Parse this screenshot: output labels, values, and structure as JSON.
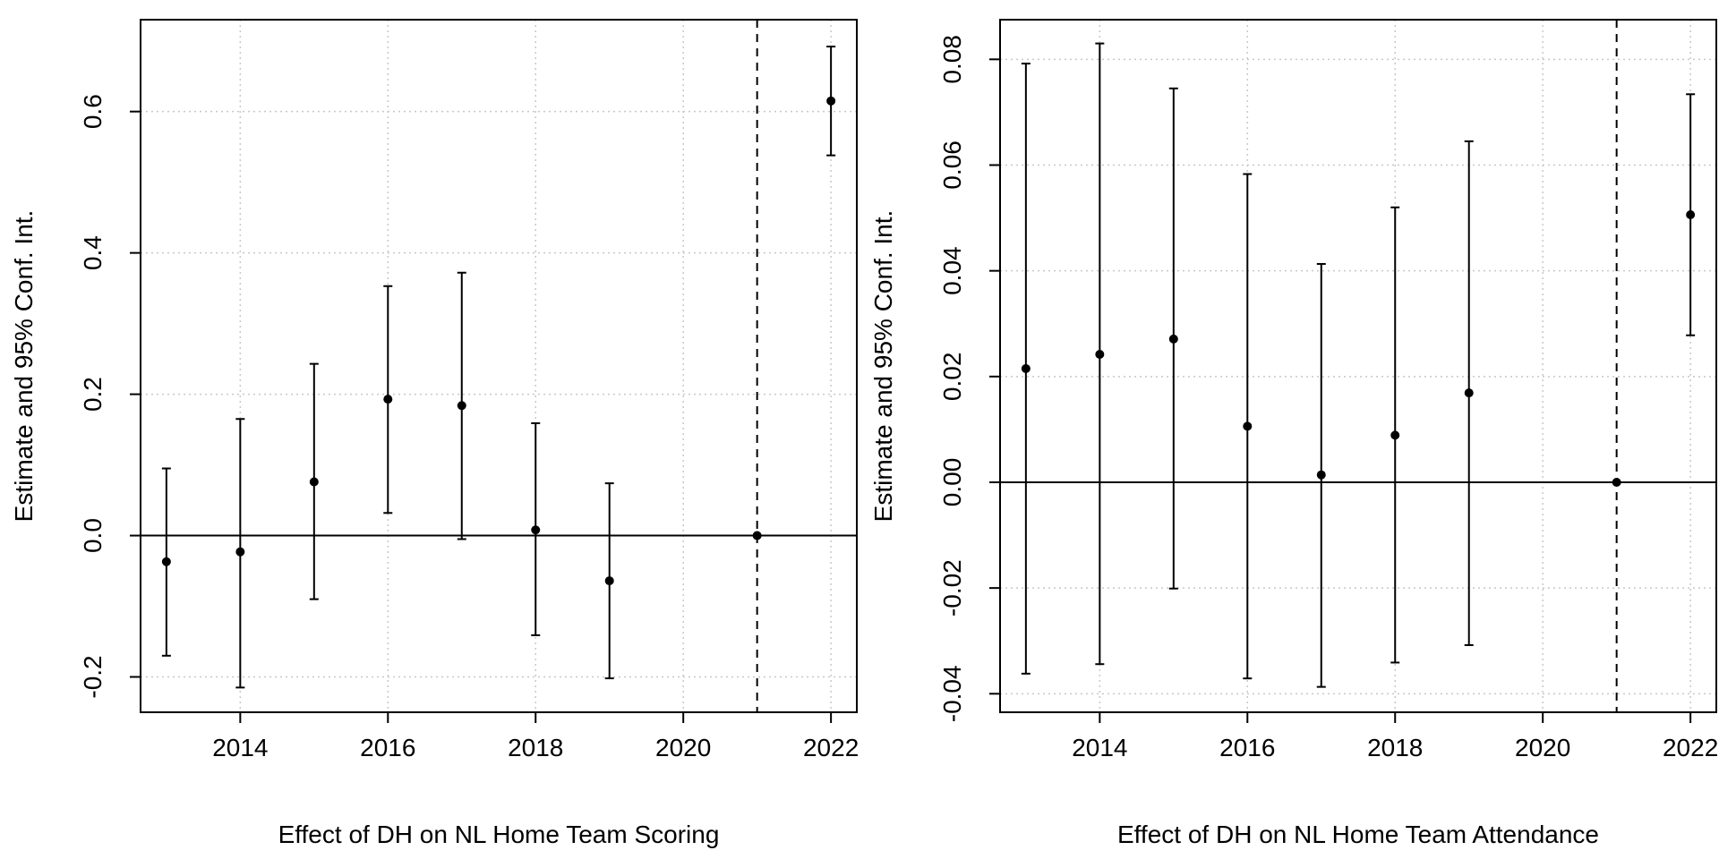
{
  "chart_data": [
    {
      "type": "scatter",
      "title": "",
      "xlabel": "Effect of DH on NL Home Team Scoring",
      "ylabel": "Estimate and 95% Conf. Int.",
      "xlim": [
        2012.65,
        2022.35
      ],
      "ylim": [
        -0.25,
        0.73
      ],
      "x_ticks": [
        2014,
        2016,
        2018,
        2020,
        2022
      ],
      "x_tick_labels": [
        "2014",
        "2016",
        "2018",
        "2020",
        "2022"
      ],
      "y_ticks": [
        -0.2,
        0.0,
        0.2,
        0.4,
        0.6
      ],
      "y_tick_labels": [
        "-0.2",
        "0.0",
        "0.2",
        "0.4",
        "0.6"
      ],
      "grid": true,
      "reference_hline": 0,
      "reference_vline": 2021,
      "points": [
        {
          "x": 2013,
          "y": -0.037,
          "lo": -0.17,
          "hi": 0.095
        },
        {
          "x": 2014,
          "y": -0.023,
          "lo": -0.215,
          "hi": 0.165
        },
        {
          "x": 2015,
          "y": 0.076,
          "lo": -0.09,
          "hi": 0.243
        },
        {
          "x": 2016,
          "y": 0.193,
          "lo": 0.032,
          "hi": 0.353
        },
        {
          "x": 2017,
          "y": 0.184,
          "lo": -0.005,
          "hi": 0.372
        },
        {
          "x": 2018,
          "y": 0.008,
          "lo": -0.141,
          "hi": 0.159
        },
        {
          "x": 2019,
          "y": -0.064,
          "lo": -0.202,
          "hi": 0.074
        },
        {
          "x": 2021,
          "y": 0.0,
          "lo": 0.0,
          "hi": 0.0
        },
        {
          "x": 2022,
          "y": 0.615,
          "lo": 0.538,
          "hi": 0.692
        }
      ]
    },
    {
      "type": "scatter",
      "title": "",
      "xlabel": "Effect of DH on NL Home Team Attendance",
      "ylabel": "Estimate and 95% Conf. Int.",
      "xlim": [
        2012.65,
        2022.35
      ],
      "ylim": [
        -0.0435,
        0.0875
      ],
      "x_ticks": [
        2014,
        2016,
        2018,
        2020,
        2022
      ],
      "x_tick_labels": [
        "2014",
        "2016",
        "2018",
        "2020",
        "2022"
      ],
      "y_ticks": [
        -0.04,
        -0.02,
        0.0,
        0.02,
        0.04,
        0.06,
        0.08
      ],
      "y_tick_labels": [
        "-0.04",
        "-0.02",
        "0.00",
        "0.02",
        "0.04",
        "0.06",
        "0.08"
      ],
      "grid": true,
      "reference_hline": 0,
      "reference_vline": 2021,
      "points": [
        {
          "x": 2013,
          "y": 0.0215,
          "lo": -0.0362,
          "hi": 0.0792
        },
        {
          "x": 2014,
          "y": 0.0242,
          "lo": -0.0344,
          "hi": 0.083
        },
        {
          "x": 2015,
          "y": 0.0271,
          "lo": -0.0201,
          "hi": 0.0745
        },
        {
          "x": 2016,
          "y": 0.0106,
          "lo": -0.0371,
          "hi": 0.0583
        },
        {
          "x": 2017,
          "y": 0.0014,
          "lo": -0.0387,
          "hi": 0.0413
        },
        {
          "x": 2018,
          "y": 0.0089,
          "lo": -0.0341,
          "hi": 0.052
        },
        {
          "x": 2019,
          "y": 0.0169,
          "lo": -0.0308,
          "hi": 0.0645
        },
        {
          "x": 2021,
          "y": 0.0,
          "lo": 0.0,
          "hi": 0.0
        },
        {
          "x": 2022,
          "y": 0.0506,
          "lo": 0.0278,
          "hi": 0.0734
        }
      ]
    }
  ]
}
